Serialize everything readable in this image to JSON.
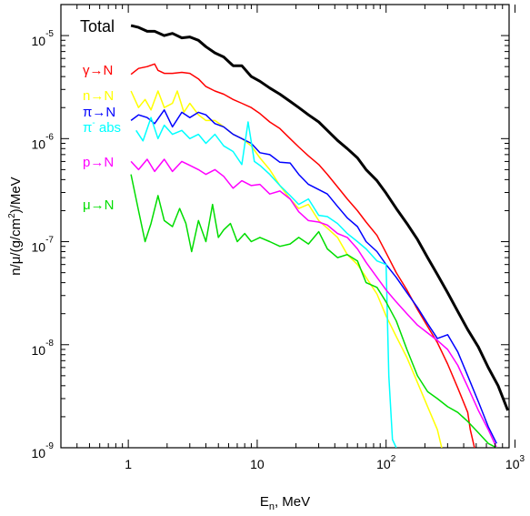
{
  "chart_data": {
    "type": "line",
    "xscale": "log",
    "yscale": "log",
    "xlim": [
      0.3,
      900
    ],
    "ylim": [
      1e-09,
      2e-05
    ],
    "xlabel": {
      "base": "E",
      "sub": "n",
      "rest": ", MeV"
    },
    "ylabel": {
      "p1": "n/μ/(g/cm",
      "sup": "2",
      "p2": ")/MeV"
    },
    "x_ticks": [
      {
        "value": 1,
        "base": "1",
        "exp": ""
      },
      {
        "value": 10,
        "base": "10",
        "exp": ""
      },
      {
        "value": 100,
        "base": "10",
        "exp": "2"
      },
      {
        "value": 1000,
        "base": "10",
        "exp": "3"
      }
    ],
    "y_ticks": [
      {
        "value": 1e-09,
        "base": "10",
        "exp": "-9"
      },
      {
        "value": 1e-08,
        "base": "10",
        "exp": "-8"
      },
      {
        "value": 1e-07,
        "base": "10",
        "exp": "-7"
      },
      {
        "value": 1e-06,
        "base": "10",
        "exp": "-6"
      },
      {
        "value": 1e-05,
        "base": "10",
        "exp": "-5"
      }
    ],
    "grid": false,
    "legend_placement": "left, inside plot area",
    "series": [
      {
        "name": "Total",
        "color": "#000000",
        "width": 3,
        "x": [
          1.05,
          1.2,
          1.4,
          1.6,
          1.9,
          2.2,
          2.6,
          3.0,
          3.5,
          4.0,
          4.7,
          5.5,
          6.5,
          7.6,
          9,
          10.5,
          12.5,
          15,
          18,
          21,
          25,
          30,
          35,
          42,
          50,
          60,
          70,
          85,
          100,
          120,
          145,
          175,
          210,
          250,
          300,
          360,
          430,
          520,
          620,
          740,
          880
        ],
        "y": [
          1.25e-05,
          1.2e-05,
          1.1e-05,
          1.1e-05,
          1e-05,
          1.05e-05,
          9.5e-06,
          9.7e-06,
          9e-06,
          7.8e-06,
          6.8e-06,
          6.2e-06,
          5.1e-06,
          5.1e-06,
          4e-06,
          3.6e-06,
          3.1e-06,
          2.7e-06,
          2.3e-06,
          2e-06,
          1.7e-06,
          1.45e-06,
          1.2e-06,
          9.6e-07,
          8e-07,
          6.5e-07,
          5e-07,
          3.9e-07,
          2.95e-07,
          2.1e-07,
          1.5e-07,
          1.05e-07,
          7e-08,
          4.8e-08,
          3.2e-08,
          2.1e-08,
          1.4e-08,
          9.5e-09,
          6e-09,
          4e-09,
          2.3e-09
        ]
      },
      {
        "name": "γ→N",
        "color": "#ff0000",
        "width": 1.5,
        "x": [
          1.05,
          1.2,
          1.4,
          1.6,
          1.7,
          1.9,
          2.2,
          2.6,
          3.0,
          3.5,
          4.0,
          4.7,
          5.5,
          6.5,
          7.6,
          9,
          10.5,
          12.5,
          15,
          18,
          21,
          25,
          30,
          35,
          42,
          50,
          60,
          70,
          85,
          100,
          120,
          145,
          175,
          210,
          250,
          300,
          360,
          430,
          450,
          500
        ],
        "y": [
          4.2e-06,
          4.8e-06,
          5e-06,
          5.3e-06,
          4.6e-06,
          4.3e-06,
          4.3e-06,
          4.4e-06,
          4.3e-06,
          3.8e-06,
          3.2e-06,
          2.9e-06,
          2.7e-06,
          2.4e-06,
          2.2e-06,
          2e-06,
          1.75e-06,
          1.45e-06,
          1.25e-06,
          1e-06,
          8.3e-07,
          6.8e-07,
          5.6e-07,
          4.5e-07,
          3.4e-07,
          2.6e-07,
          2e-07,
          1.55e-07,
          1.15e-07,
          7.8e-08,
          5e-08,
          3.4e-08,
          2.2e-08,
          1.5e-08,
          1.05e-08,
          6.5e-09,
          3.8e-09,
          2.2e-09,
          1.5e-09,
          8.5e-10
        ]
      },
      {
        "name": "n→N",
        "color": "#ffff00",
        "width": 1.5,
        "x": [
          1.05,
          1.2,
          1.35,
          1.5,
          1.7,
          1.9,
          2.2,
          2.4,
          2.7,
          3.0,
          3.5,
          4.0,
          4.7,
          5.5,
          6.5,
          7.6,
          9,
          10.5,
          12.5,
          15,
          18,
          21,
          25,
          30,
          35,
          42,
          50,
          60,
          70,
          85,
          100,
          120,
          145,
          175,
          210,
          250,
          270
        ],
        "y": [
          2.9e-06,
          2e-06,
          2.4e-06,
          1.9e-06,
          2.9e-06,
          2e-06,
          2.2e-06,
          2.9e-06,
          1.8e-06,
          2.2e-06,
          1.7e-06,
          1.5e-06,
          1.5e-06,
          1.3e-06,
          1.1e-06,
          1e-06,
          8.5e-07,
          6.5e-07,
          5e-07,
          3.5e-07,
          2.6e-07,
          2.1e-07,
          2.3e-07,
          1.6e-07,
          1.35e-07,
          1.1e-07,
          7.5e-08,
          6e-08,
          4.5e-08,
          3.1e-08,
          1.9e-08,
          1.2e-08,
          7.5e-09,
          4.3e-09,
          2.5e-09,
          1.5e-09,
          1e-09
        ]
      },
      {
        "name": "π→N",
        "color": "#0000ff",
        "width": 1.5,
        "x": [
          1.05,
          1.2,
          1.4,
          1.6,
          1.9,
          2.2,
          2.6,
          3.0,
          3.5,
          4.0,
          4.7,
          5.5,
          6.5,
          7.6,
          9,
          10.5,
          12.5,
          15,
          18,
          21,
          25,
          30,
          35,
          42,
          50,
          60,
          70,
          85,
          100,
          120,
          145,
          175,
          210,
          250,
          300,
          360,
          430,
          520,
          620,
          720
        ],
        "y": [
          1.5e-06,
          1.7e-06,
          1.6e-06,
          1.4e-06,
          1.9e-06,
          1.3e-06,
          1.8e-06,
          1.6e-06,
          1.8e-06,
          1.7e-06,
          1.4e-06,
          1.3e-06,
          1.1e-06,
          1e-06,
          9e-07,
          7.3e-07,
          7e-07,
          5.9e-07,
          5.8e-07,
          4.5e-07,
          3.6e-07,
          3.2e-07,
          2.9e-07,
          2.2e-07,
          1.7e-07,
          1.4e-07,
          1e-07,
          8e-08,
          6e-08,
          4.5e-08,
          3.2e-08,
          2.3e-08,
          1.6e-08,
          1.15e-08,
          1.25e-08,
          8.5e-09,
          5e-09,
          2.8e-09,
          1.6e-09,
          1.1e-09
        ]
      },
      {
        "name": "π⁻ abs",
        "color": "#00ffff",
        "width": 1.5,
        "x": [
          1.15,
          1.3,
          1.5,
          1.7,
          1.9,
          2.2,
          2.6,
          3.0,
          3.5,
          4.0,
          4.7,
          5.5,
          6.5,
          7.6,
          8.5,
          9.5,
          10.5,
          12.5,
          15,
          18,
          21,
          25,
          30,
          35,
          42,
          50,
          60,
          70,
          85,
          100,
          105,
          112,
          120
        ],
        "y": [
          1.2e-06,
          9.5e-07,
          1.6e-06,
          1e-06,
          1.35e-06,
          1.1e-06,
          1.2e-06,
          1e-06,
          1.1e-06,
          9e-07,
          1.1e-06,
          8.5e-07,
          7.5e-07,
          5.6e-07,
          1.45e-06,
          6e-07,
          5.5e-07,
          4.5e-07,
          3.5e-07,
          2.8e-07,
          2.3e-07,
          2.6e-07,
          1.8e-07,
          1.75e-07,
          1.5e-07,
          1.2e-07,
          1e-07,
          8.5e-08,
          6.5e-08,
          6e-08,
          5e-09,
          1.2e-09,
          1e-09
        ]
      },
      {
        "name": "p→N",
        "color": "#ff00ff",
        "width": 1.5,
        "x": [
          1.05,
          1.2,
          1.4,
          1.6,
          1.9,
          2.2,
          2.6,
          3.0,
          3.5,
          4.0,
          4.7,
          5.5,
          6.5,
          7.6,
          9,
          10.5,
          12.5,
          15,
          18,
          21,
          25,
          30,
          35,
          42,
          50,
          60,
          70,
          85,
          100,
          120,
          145,
          175,
          210,
          250,
          300,
          360,
          430,
          520,
          620,
          720
        ],
        "y": [
          6e-07,
          5e-07,
          6.3e-07,
          4.8e-07,
          6.3e-07,
          4.8e-07,
          6e-07,
          5.5e-07,
          5e-07,
          4.5e-07,
          5e-07,
          4.3e-07,
          3.3e-07,
          3.9e-07,
          3.5e-07,
          3.6e-07,
          2.9e-07,
          3.1e-07,
          2.6e-07,
          1.95e-07,
          1.6e-07,
          1.55e-07,
          1.45e-07,
          1.2e-07,
          1.1e-07,
          8.5e-08,
          6.3e-08,
          4.5e-08,
          3.4e-08,
          2.6e-08,
          2e-08,
          1.55e-08,
          1.3e-08,
          1.1e-08,
          9e-09,
          6.3e-09,
          3.9e-09,
          2.3e-09,
          1.5e-09,
          1e-09
        ]
      },
      {
        "name": "μ→N",
        "color": "#00dd00",
        "width": 1.5,
        "x": [
          1.05,
          1.2,
          1.35,
          1.5,
          1.7,
          1.9,
          2.2,
          2.5,
          2.8,
          3.1,
          3.5,
          4.0,
          4.5,
          5.0,
          5.5,
          6.2,
          7.0,
          8.0,
          9,
          10.5,
          12.5,
          15,
          18,
          21,
          25,
          30,
          35,
          42,
          50,
          60,
          70,
          85,
          100,
          120,
          145,
          175,
          210,
          250,
          300,
          360,
          430,
          520,
          620,
          720
        ],
        "y": [
          4.5e-07,
          2e-07,
          1e-07,
          1.5e-07,
          2.8e-07,
          1.6e-07,
          1.4e-07,
          2.1e-07,
          1.5e-07,
          8e-08,
          1.6e-07,
          1e-07,
          2.3e-07,
          1.1e-07,
          1.3e-07,
          1.5e-07,
          1e-07,
          1.2e-07,
          1e-07,
          1.1e-07,
          1e-07,
          9e-08,
          9.5e-08,
          1.1e-07,
          9.5e-08,
          1.25e-07,
          8.5e-08,
          7e-08,
          7.5e-08,
          6.5e-08,
          4e-08,
          3.6e-08,
          2.6e-08,
          1.7e-08,
          9e-09,
          5e-09,
          3.5e-09,
          3e-09,
          2.5e-09,
          2.2e-09,
          1.8e-09,
          1.4e-09,
          1.1e-09,
          1e-09
        ]
      }
    ],
    "legend": [
      {
        "label": "Total",
        "color": "#000000",
        "big": true
      },
      {
        "label": "γ→N",
        "color": "#ff0000"
      },
      {
        "label": "n→N",
        "color": "#ffff00"
      },
      {
        "label": "π→N",
        "color": "#0000ff"
      },
      {
        "label": "π⁻ abs",
        "color": "#00ffff",
        "base": "π",
        "sup": "-",
        "rest": " abs"
      },
      {
        "label": "p→N",
        "color": "#ff00ff"
      },
      {
        "label": "μ→N",
        "color": "#00dd00"
      }
    ]
  }
}
